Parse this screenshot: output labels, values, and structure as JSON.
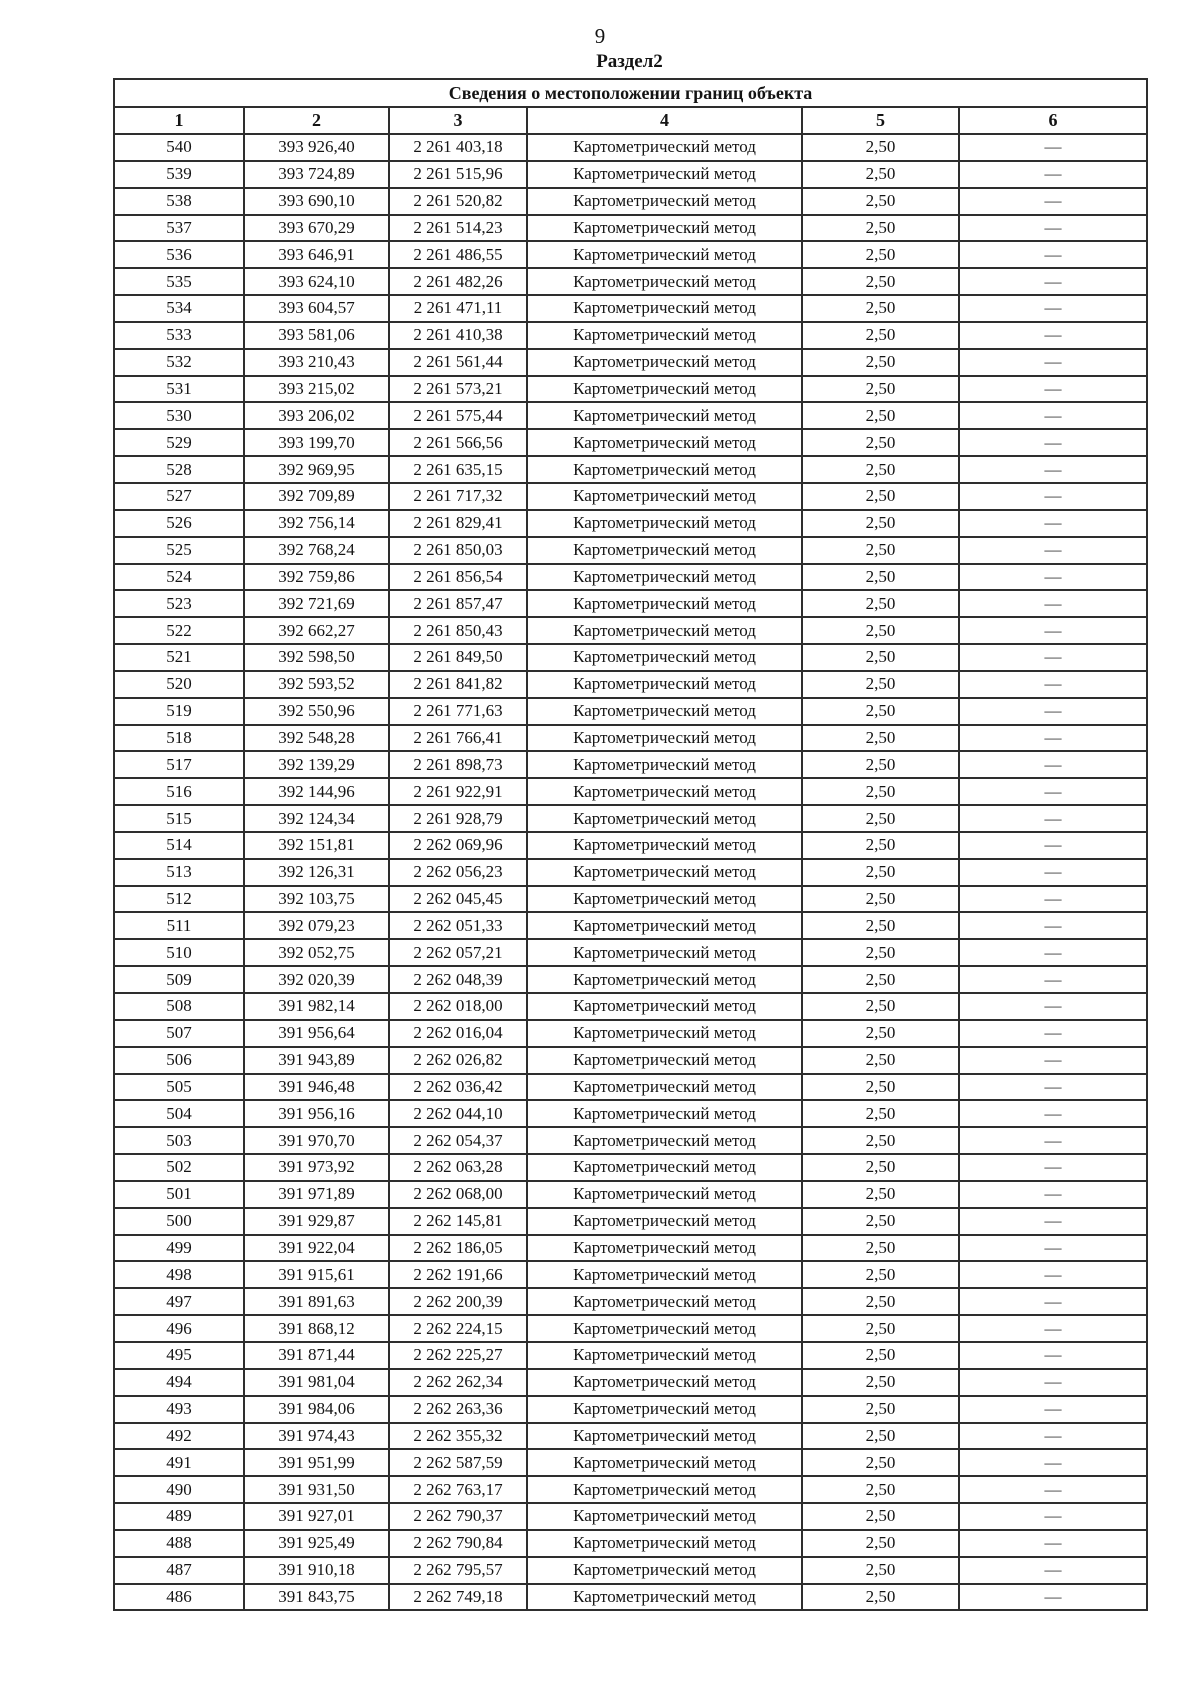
{
  "page": {
    "number": "9",
    "section_label": "Раздел2"
  },
  "table": {
    "title": "Сведения о местоположении границ объекта",
    "column_numbers": [
      "1",
      "2",
      "3",
      "4",
      "5",
      "6"
    ],
    "method_label": "Картометрический метод",
    "precision_value": "2,50",
    "no_data_dash": "—",
    "rows": [
      [
        "540",
        "393 926,40",
        "2 261 403,18"
      ],
      [
        "539",
        "393 724,89",
        "2 261 515,96"
      ],
      [
        "538",
        "393 690,10",
        "2 261 520,82"
      ],
      [
        "537",
        "393 670,29",
        "2 261 514,23"
      ],
      [
        "536",
        "393 646,91",
        "2 261 486,55"
      ],
      [
        "535",
        "393 624,10",
        "2 261 482,26"
      ],
      [
        "534",
        "393 604,57",
        "2 261 471,11"
      ],
      [
        "533",
        "393 581,06",
        "2 261 410,38"
      ],
      [
        "532",
        "393 210,43",
        "2 261 561,44"
      ],
      [
        "531",
        "393 215,02",
        "2 261 573,21"
      ],
      [
        "530",
        "393 206,02",
        "2 261 575,44"
      ],
      [
        "529",
        "393 199,70",
        "2 261 566,56"
      ],
      [
        "528",
        "392 969,95",
        "2 261 635,15"
      ],
      [
        "527",
        "392 709,89",
        "2 261 717,32"
      ],
      [
        "526",
        "392 756,14",
        "2 261 829,41"
      ],
      [
        "525",
        "392 768,24",
        "2 261 850,03"
      ],
      [
        "524",
        "392 759,86",
        "2 261 856,54"
      ],
      [
        "523",
        "392 721,69",
        "2 261 857,47"
      ],
      [
        "522",
        "392 662,27",
        "2 261 850,43"
      ],
      [
        "521",
        "392 598,50",
        "2 261 849,50"
      ],
      [
        "520",
        "392 593,52",
        "2 261 841,82"
      ],
      [
        "519",
        "392 550,96",
        "2 261 771,63"
      ],
      [
        "518",
        "392 548,28",
        "2 261 766,41"
      ],
      [
        "517",
        "392 139,29",
        "2 261 898,73"
      ],
      [
        "516",
        "392 144,96",
        "2 261 922,91"
      ],
      [
        "515",
        "392 124,34",
        "2 261 928,79"
      ],
      [
        "514",
        "392 151,81",
        "2 262 069,96"
      ],
      [
        "513",
        "392 126,31",
        "2 262 056,23"
      ],
      [
        "512",
        "392 103,75",
        "2 262 045,45"
      ],
      [
        "511",
        "392 079,23",
        "2 262 051,33"
      ],
      [
        "510",
        "392 052,75",
        "2 262 057,21"
      ],
      [
        "509",
        "392 020,39",
        "2 262 048,39"
      ],
      [
        "508",
        "391 982,14",
        "2 262 018,00"
      ],
      [
        "507",
        "391 956,64",
        "2 262 016,04"
      ],
      [
        "506",
        "391 943,89",
        "2 262 026,82"
      ],
      [
        "505",
        "391 946,48",
        "2 262 036,42"
      ],
      [
        "504",
        "391 956,16",
        "2 262 044,10"
      ],
      [
        "503",
        "391 970,70",
        "2 262 054,37"
      ],
      [
        "502",
        "391 973,92",
        "2 262 063,28"
      ],
      [
        "501",
        "391 971,89",
        "2 262 068,00"
      ],
      [
        "500",
        "391 929,87",
        "2 262 145,81"
      ],
      [
        "499",
        "391 922,04",
        "2 262 186,05"
      ],
      [
        "498",
        "391 915,61",
        "2 262 191,66"
      ],
      [
        "497",
        "391 891,63",
        "2 262 200,39"
      ],
      [
        "496",
        "391 868,12",
        "2 262 224,15"
      ],
      [
        "495",
        "391 871,44",
        "2 262 225,27"
      ],
      [
        "494",
        "391 981,04",
        "2 262 262,34"
      ],
      [
        "493",
        "391 984,06",
        "2 262 263,36"
      ],
      [
        "492",
        "391 974,43",
        "2 262 355,32"
      ],
      [
        "491",
        "391 951,99",
        "2 262 587,59"
      ],
      [
        "490",
        "391 931,50",
        "2 262 763,17"
      ],
      [
        "489",
        "391 927,01",
        "2 262 790,37"
      ],
      [
        "488",
        "391 925,49",
        "2 262 790,84"
      ],
      [
        "487",
        "391 910,18",
        "2 262 795,57"
      ],
      [
        "486",
        "391 843,75",
        "2 262 749,18"
      ]
    ]
  }
}
